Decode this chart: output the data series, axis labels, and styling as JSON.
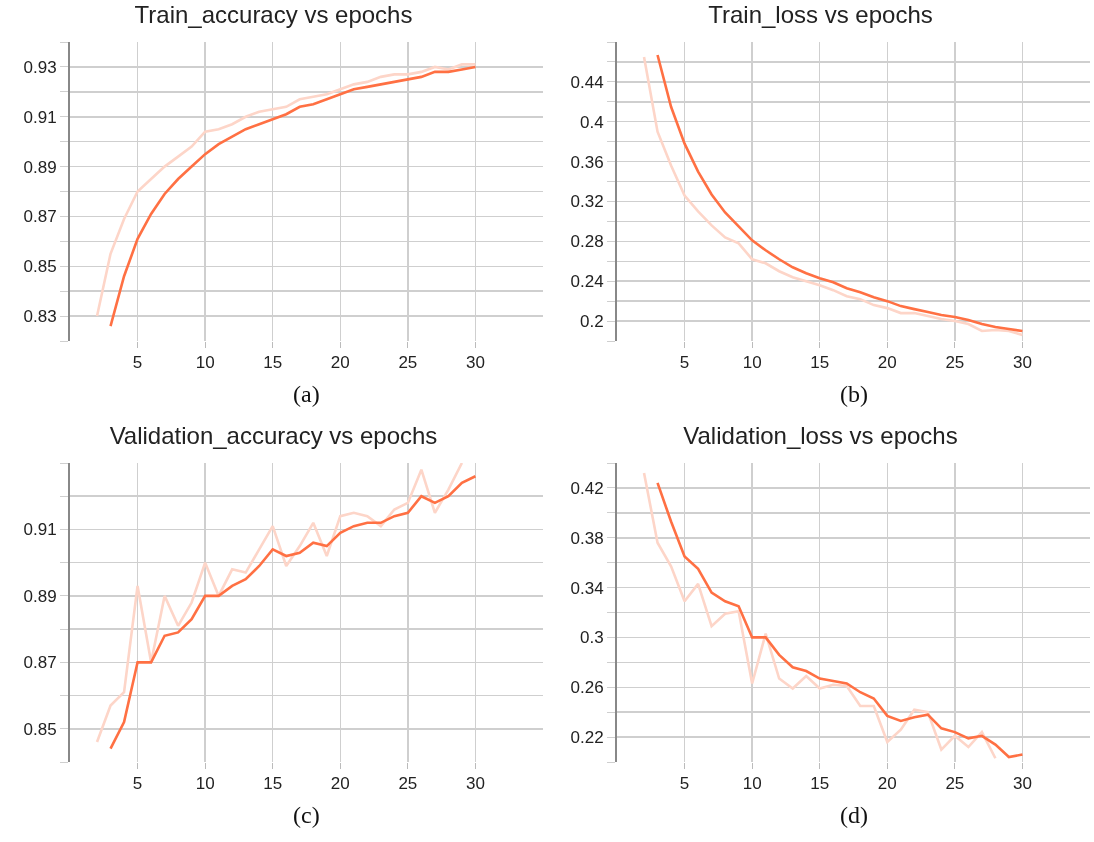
{
  "chart_data": [
    {
      "type": "line",
      "title": "Train_accuracy vs epochs",
      "annotations": [
        "(a)"
      ],
      "xlim": [
        0,
        35
      ],
      "xticks": [
        5,
        10,
        15,
        20,
        25,
        30
      ],
      "ylim": [
        0.82,
        0.94
      ],
      "yticks": [
        {
          "value": 0.82,
          "label": null
        },
        0.83,
        {
          "value": 0.84,
          "label": null
        },
        0.85,
        {
          "value": 0.86,
          "label": null
        },
        0.87,
        {
          "value": 0.88,
          "label": null
        },
        0.89,
        {
          "value": 0.9,
          "label": null
        },
        0.91,
        {
          "value": 0.92,
          "label": null
        },
        0.93,
        {
          "value": 0.94,
          "label": null
        }
      ],
      "grid": true,
      "marker": "none",
      "line_style": "solid",
      "series": [
        {
          "color": "#fdd5c8",
          "x": [
            2,
            3,
            4,
            5,
            6,
            7,
            8,
            9,
            10,
            11,
            12,
            13,
            14,
            15,
            16,
            17,
            18,
            19,
            20,
            21,
            22,
            23,
            24,
            25,
            26,
            27,
            28,
            29,
            30
          ],
          "values": [
            0.83,
            0.855,
            0.869,
            0.88,
            0.885,
            0.89,
            0.894,
            0.898,
            0.904,
            0.905,
            0.907,
            0.91,
            0.912,
            0.913,
            0.914,
            0.917,
            0.918,
            0.919,
            0.921,
            0.923,
            0.924,
            0.926,
            0.927,
            0.927,
            0.928,
            0.93,
            0.929,
            0.931,
            0.931
          ]
        },
        {
          "color": "#ff7043",
          "x": [
            3,
            4,
            5,
            6,
            7,
            8,
            9,
            10,
            11,
            12,
            13,
            14,
            15,
            16,
            17,
            18,
            19,
            20,
            21,
            22,
            23,
            24,
            25,
            26,
            27,
            28,
            29,
            30
          ],
          "values": [
            0.826,
            0.846,
            0.861,
            0.871,
            0.879,
            0.885,
            0.89,
            0.895,
            0.899,
            0.902,
            0.905,
            0.907,
            0.909,
            0.911,
            0.914,
            0.915,
            0.917,
            0.919,
            0.921,
            0.922,
            0.923,
            0.924,
            0.925,
            0.926,
            0.928,
            0.928,
            0.929,
            0.93
          ]
        }
      ]
    },
    {
      "type": "line",
      "title": "Train_loss vs epochs",
      "annotations": [
        "(b)"
      ],
      "xlim": [
        0,
        35
      ],
      "xticks": [
        5,
        10,
        15,
        20,
        25,
        30
      ],
      "ylim": [
        0.18,
        0.48
      ],
      "yticks": [
        {
          "value": 0.18,
          "label": null
        },
        0.2,
        {
          "value": 0.22,
          "label": null
        },
        0.24,
        {
          "value": 0.26,
          "label": null
        },
        0.28,
        {
          "value": 0.3,
          "label": null
        },
        0.32,
        {
          "value": 0.34,
          "label": null
        },
        0.36,
        {
          "value": 0.38,
          "label": null
        },
        0.4,
        {
          "value": 0.42,
          "label": null
        },
        0.44,
        {
          "value": 0.46,
          "label": null
        },
        {
          "value": 0.48,
          "label": null
        }
      ],
      "grid": true,
      "marker": "none",
      "line_style": "solid",
      "series": [
        {
          "color": "#fdd5c8",
          "x": [
            2,
            3,
            4,
            5,
            6,
            7,
            8,
            9,
            10,
            11,
            12,
            13,
            14,
            15,
            16,
            17,
            18,
            19,
            20,
            21,
            22,
            23,
            24,
            25,
            26,
            27,
            28,
            29,
            30
          ],
          "values": [
            0.465,
            0.39,
            0.356,
            0.326,
            0.31,
            0.296,
            0.284,
            0.278,
            0.262,
            0.258,
            0.25,
            0.244,
            0.24,
            0.236,
            0.231,
            0.225,
            0.222,
            0.216,
            0.213,
            0.208,
            0.208,
            0.205,
            0.202,
            0.2,
            0.197,
            0.19,
            0.191,
            0.19,
            0.186
          ]
        },
        {
          "color": "#ff7043",
          "x": [
            3,
            4,
            5,
            6,
            7,
            8,
            9,
            10,
            11,
            12,
            13,
            14,
            15,
            16,
            17,
            18,
            19,
            20,
            21,
            22,
            23,
            24,
            25,
            26,
            27,
            28,
            29,
            30
          ],
          "values": [
            0.467,
            0.415,
            0.378,
            0.35,
            0.327,
            0.309,
            0.295,
            0.281,
            0.271,
            0.262,
            0.254,
            0.248,
            0.243,
            0.239,
            0.233,
            0.229,
            0.224,
            0.22,
            0.215,
            0.212,
            0.209,
            0.206,
            0.204,
            0.201,
            0.197,
            0.194,
            0.192,
            0.19
          ]
        }
      ]
    },
    {
      "type": "line",
      "title": "Validation_accuracy vs epochs",
      "annotations": [
        "(c)"
      ],
      "xlim": [
        0,
        35
      ],
      "xticks": [
        5,
        10,
        15,
        20,
        25,
        30
      ],
      "ylim": [
        0.84,
        0.93
      ],
      "yticks": [
        {
          "value": 0.84,
          "label": null
        },
        0.85,
        {
          "value": 0.86,
          "label": null
        },
        0.87,
        {
          "value": 0.88,
          "label": null
        },
        0.89,
        {
          "value": 0.9,
          "label": null
        },
        0.91,
        {
          "value": 0.92,
          "label": null
        },
        {
          "value": 0.93,
          "label": null
        }
      ],
      "grid": true,
      "marker": "none",
      "line_style": "solid",
      "series": [
        {
          "color": "#fdd5c8",
          "x": [
            2,
            3,
            4,
            5,
            6,
            7,
            8,
            9,
            10,
            11,
            12,
            13,
            14,
            15,
            16,
            17,
            18,
            19,
            20,
            21,
            22,
            23,
            24,
            25,
            26,
            27,
            28,
            29
          ],
          "values": [
            0.846,
            0.857,
            0.861,
            0.893,
            0.87,
            0.89,
            0.881,
            0.888,
            0.9,
            0.89,
            0.898,
            0.897,
            0.904,
            0.911,
            0.899,
            0.905,
            0.912,
            0.902,
            0.914,
            0.915,
            0.914,
            0.911,
            0.916,
            0.918,
            0.928,
            0.915,
            0.922,
            0.93
          ]
        },
        {
          "color": "#ff7043",
          "x": [
            3,
            4,
            5,
            6,
            7,
            8,
            9,
            10,
            11,
            12,
            13,
            14,
            15,
            16,
            17,
            18,
            19,
            20,
            21,
            22,
            23,
            24,
            25,
            26,
            27,
            28,
            29,
            30
          ],
          "values": [
            0.844,
            0.852,
            0.87,
            0.87,
            0.878,
            0.879,
            0.883,
            0.89,
            0.89,
            0.893,
            0.895,
            0.899,
            0.904,
            0.902,
            0.903,
            0.906,
            0.905,
            0.909,
            0.911,
            0.912,
            0.912,
            0.914,
            0.915,
            0.92,
            0.918,
            0.92,
            0.924,
            0.926
          ]
        }
      ]
    },
    {
      "type": "line",
      "title": "Validation_loss vs epochs",
      "annotations": [
        "(d)"
      ],
      "xlim": [
        0,
        35
      ],
      "xticks": [
        5,
        10,
        15,
        20,
        25,
        30
      ],
      "ylim": [
        0.2,
        0.44
      ],
      "yticks": [
        {
          "value": 0.2,
          "label": null
        },
        0.22,
        {
          "value": 0.24,
          "label": null
        },
        0.26,
        {
          "value": 0.28,
          "label": null
        },
        0.3,
        {
          "value": 0.32,
          "label": null
        },
        0.34,
        {
          "value": 0.36,
          "label": null
        },
        0.38,
        {
          "value": 0.4,
          "label": null
        },
        0.42,
        {
          "value": 0.44,
          "label": null
        }
      ],
      "grid": true,
      "marker": "none",
      "line_style": "solid",
      "series": [
        {
          "color": "#fdd5c8",
          "x": [
            2,
            3,
            4,
            5,
            6,
            7,
            8,
            9,
            10,
            11,
            12,
            13,
            14,
            15,
            16,
            17,
            18,
            19,
            20,
            21,
            22,
            23,
            24,
            25,
            26,
            27,
            28
          ],
          "values": [
            0.432,
            0.376,
            0.357,
            0.329,
            0.343,
            0.309,
            0.319,
            0.321,
            0.263,
            0.303,
            0.267,
            0.259,
            0.269,
            0.259,
            0.262,
            0.261,
            0.245,
            0.245,
            0.216,
            0.226,
            0.242,
            0.24,
            0.21,
            0.221,
            0.212,
            0.224,
            0.203
          ]
        },
        {
          "color": "#ff7043",
          "x": [
            3,
            4,
            5,
            6,
            7,
            8,
            9,
            10,
            11,
            12,
            13,
            14,
            15,
            16,
            17,
            18,
            19,
            20,
            21,
            22,
            23,
            24,
            25,
            26,
            27,
            28,
            29,
            30
          ],
          "values": [
            0.424,
            0.393,
            0.365,
            0.355,
            0.336,
            0.329,
            0.325,
            0.3,
            0.3,
            0.286,
            0.276,
            0.273,
            0.267,
            0.265,
            0.263,
            0.256,
            0.251,
            0.237,
            0.233,
            0.236,
            0.238,
            0.227,
            0.224,
            0.219,
            0.221,
            0.214,
            0.204,
            0.206
          ]
        }
      ]
    }
  ]
}
